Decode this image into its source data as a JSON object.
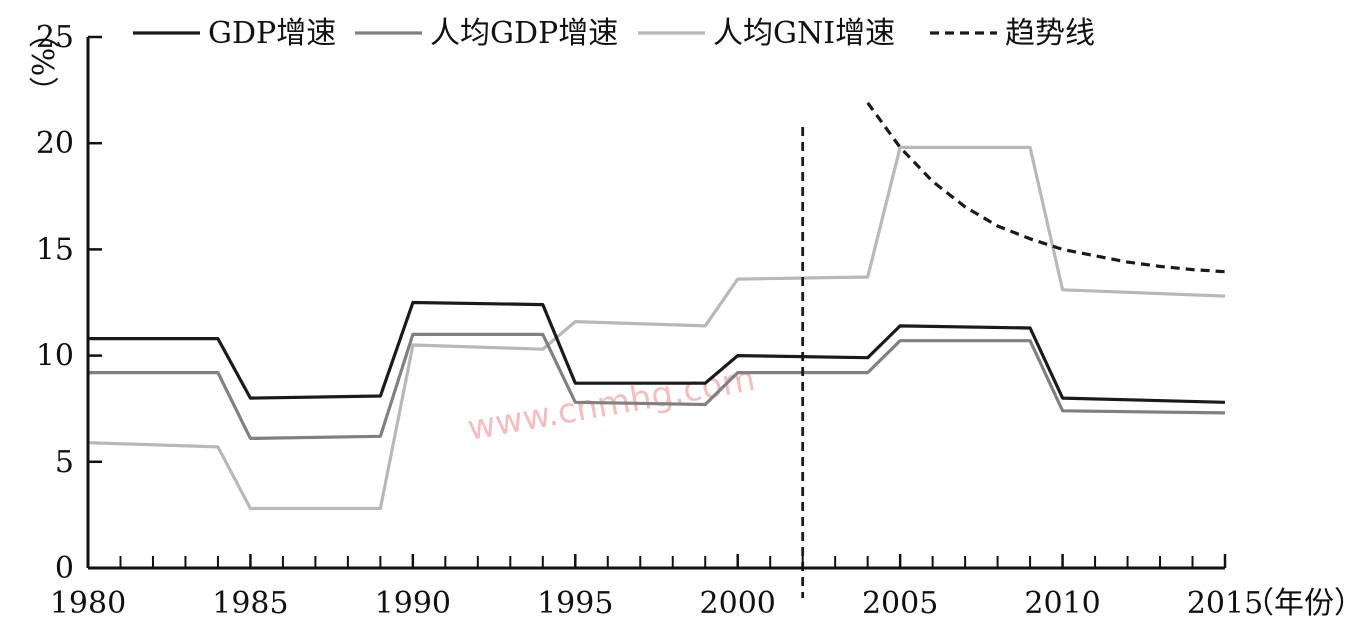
{
  "chart_data": {
    "type": "line",
    "title": "",
    "xlabel": "（年份）",
    "ylabel": "（%）",
    "xlim": [
      1980,
      2015
    ],
    "ylim": [
      0,
      25
    ],
    "x_ticks": [
      1980,
      1985,
      1990,
      1995,
      2000,
      2005,
      2010,
      2015
    ],
    "y_ticks": [
      0,
      5,
      10,
      15,
      20,
      25
    ],
    "series": [
      {
        "name": "GDP增速",
        "color": "#1a1a1a",
        "style": "solid",
        "points": [
          [
            1980,
            10.8
          ],
          [
            1984,
            10.8
          ],
          [
            1985,
            8.0
          ],
          [
            1989,
            8.1
          ],
          [
            1990,
            12.5
          ],
          [
            1994,
            12.4
          ],
          [
            1995,
            8.7
          ],
          [
            1999,
            8.7
          ],
          [
            2000,
            10.0
          ],
          [
            2004,
            9.9
          ],
          [
            2005,
            11.4
          ],
          [
            2009,
            11.3
          ],
          [
            2010,
            8.0
          ],
          [
            2015,
            7.8
          ]
        ]
      },
      {
        "name": "人均GDP增速",
        "color": "#808080",
        "style": "solid",
        "points": [
          [
            1980,
            9.2
          ],
          [
            1984,
            9.2
          ],
          [
            1985,
            6.1
          ],
          [
            1989,
            6.2
          ],
          [
            1990,
            11.0
          ],
          [
            1994,
            11.0
          ],
          [
            1995,
            7.8
          ],
          [
            1999,
            7.7
          ],
          [
            2000,
            9.2
          ],
          [
            2004,
            9.2
          ],
          [
            2005,
            10.7
          ],
          [
            2009,
            10.7
          ],
          [
            2010,
            7.4
          ],
          [
            2015,
            7.3
          ]
        ]
      },
      {
        "name": "人均GNI增速",
        "color": "#b8b8b8",
        "style": "solid",
        "points": [
          [
            1980,
            5.9
          ],
          [
            1984,
            5.7
          ],
          [
            1985,
            2.8
          ],
          [
            1989,
            2.8
          ],
          [
            1990,
            10.5
          ],
          [
            1994,
            10.3
          ],
          [
            1995,
            11.6
          ],
          [
            1999,
            11.4
          ],
          [
            2000,
            13.6
          ],
          [
            2004,
            13.7
          ],
          [
            2005,
            19.8
          ],
          [
            2009,
            19.8
          ],
          [
            2010,
            13.1
          ],
          [
            2015,
            12.8
          ]
        ]
      },
      {
        "name": "趋势线",
        "color": "#1a1a1a",
        "style": "dashed",
        "points": [
          [
            2004,
            21.9
          ],
          [
            2005,
            19.8
          ],
          [
            2006,
            18.2
          ],
          [
            2007,
            17.0
          ],
          [
            2008,
            16.1
          ],
          [
            2009,
            15.5
          ],
          [
            2010,
            15.0
          ],
          [
            2011,
            14.7
          ],
          [
            2012,
            14.4
          ],
          [
            2013,
            14.2
          ],
          [
            2014,
            14.05
          ],
          [
            2015,
            13.95
          ]
        ]
      }
    ],
    "reference_line": {
      "x": 2002,
      "style": "dashed",
      "color": "#1a1a1a"
    },
    "legend_position": "top",
    "grid": false
  },
  "watermark": "www.cnmhg.com"
}
